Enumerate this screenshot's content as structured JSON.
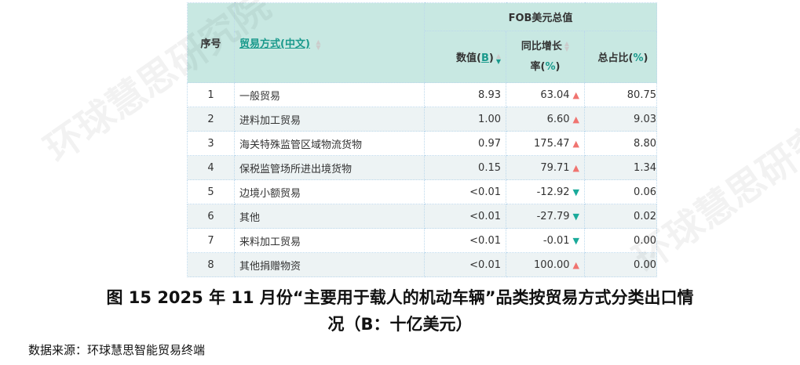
{
  "watermark": "环球慧思研究院",
  "table": {
    "headers": {
      "index": "序号",
      "trade_mode": "贸易方式(中文)",
      "group": "FOB美元总值",
      "value": "数值",
      "value_unit": "B",
      "yoy": "同比增长",
      "yoy2": "率",
      "yoy_unit": "%",
      "share": "总占比",
      "share_unit": "%"
    },
    "rows": [
      {
        "index": "1",
        "mode": "一般贸易",
        "value": "8.93",
        "yoy": "63.04",
        "trend": "up",
        "share": "80.75"
      },
      {
        "index": "2",
        "mode": "进料加工贸易",
        "value": "1.00",
        "yoy": "6.60",
        "trend": "up",
        "share": "9.03"
      },
      {
        "index": "3",
        "mode": "海关特殊监管区域物流货物",
        "value": "0.97",
        "yoy": "175.47",
        "trend": "up",
        "share": "8.80"
      },
      {
        "index": "4",
        "mode": "保税监管场所进出境货物",
        "value": "0.15",
        "yoy": "79.71",
        "trend": "up",
        "share": "1.34"
      },
      {
        "index": "5",
        "mode": "边境小额贸易",
        "value": "<0.01",
        "yoy": "-12.92",
        "trend": "down",
        "share": "0.06"
      },
      {
        "index": "6",
        "mode": "其他",
        "value": "<0.01",
        "yoy": "-27.79",
        "trend": "down",
        "share": "0.02"
      },
      {
        "index": "7",
        "mode": "来料加工贸易",
        "value": "<0.01",
        "yoy": "-0.01",
        "trend": "down",
        "share": "0.00"
      },
      {
        "index": "8",
        "mode": "其他捐赠物资",
        "value": "<0.01",
        "yoy": "100.00",
        "trend": "up",
        "share": "0.00"
      }
    ],
    "colors": {
      "header_bg": "#c8e8e2",
      "up": "#f07470",
      "down": "#1aaa9a",
      "accent": "#1a9a8c"
    }
  },
  "caption": {
    "line1": "图 15 2025 年 11 月份“主要用于载人的机动车辆”品类按贸易方式分类出口情",
    "line2": "况（B：十亿美元）"
  },
  "source": "数据来源：环球慧思智能贸易终端"
}
